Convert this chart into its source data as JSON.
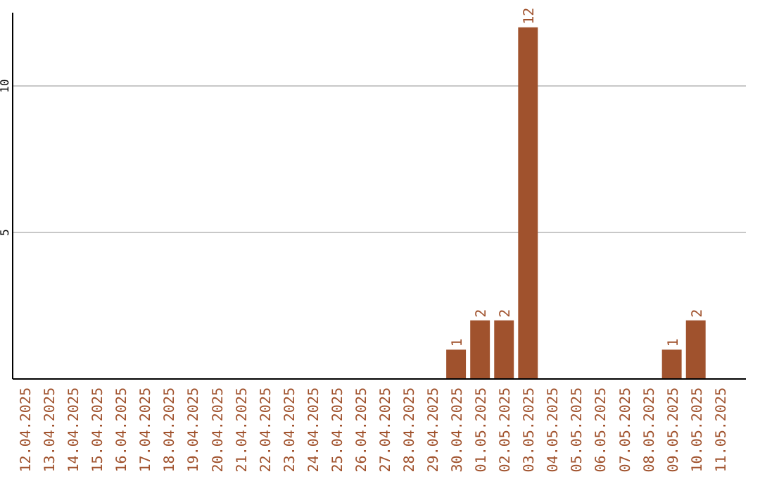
{
  "chart_data": {
    "type": "bar",
    "categories": [
      "12.04.2025",
      "13.04.2025",
      "14.04.2025",
      "15.04.2025",
      "16.04.2025",
      "17.04.2025",
      "18.04.2025",
      "19.04.2025",
      "20.04.2025",
      "21.04.2025",
      "22.04.2025",
      "23.04.2025",
      "24.04.2025",
      "25.04.2025",
      "26.04.2025",
      "27.04.2025",
      "28.04.2025",
      "29.04.2025",
      "30.04.2025",
      "01.05.2025",
      "02.05.2025",
      "03.05.2025",
      "04.05.2025",
      "05.05.2025",
      "06.05.2025",
      "07.05.2025",
      "08.05.2025",
      "09.05.2025",
      "10.05.2025",
      "11.05.2025"
    ],
    "values": [
      0,
      0,
      0,
      0,
      0,
      0,
      0,
      0,
      0,
      0,
      0,
      0,
      0,
      0,
      0,
      0,
      0,
      0,
      1,
      2,
      2,
      12,
      0,
      0,
      0,
      0,
      0,
      1,
      2,
      0
    ],
    "value_labels": [
      null,
      null,
      null,
      null,
      null,
      null,
      null,
      null,
      null,
      null,
      null,
      null,
      null,
      null,
      null,
      null,
      null,
      null,
      "1",
      "2",
      "2",
      "12",
      null,
      null,
      null,
      null,
      null,
      "1",
      "2",
      null
    ],
    "color": "#a0522d",
    "ylim": [
      0,
      12.5
    ],
    "yticks": [
      5,
      10
    ],
    "grid": "y"
  }
}
